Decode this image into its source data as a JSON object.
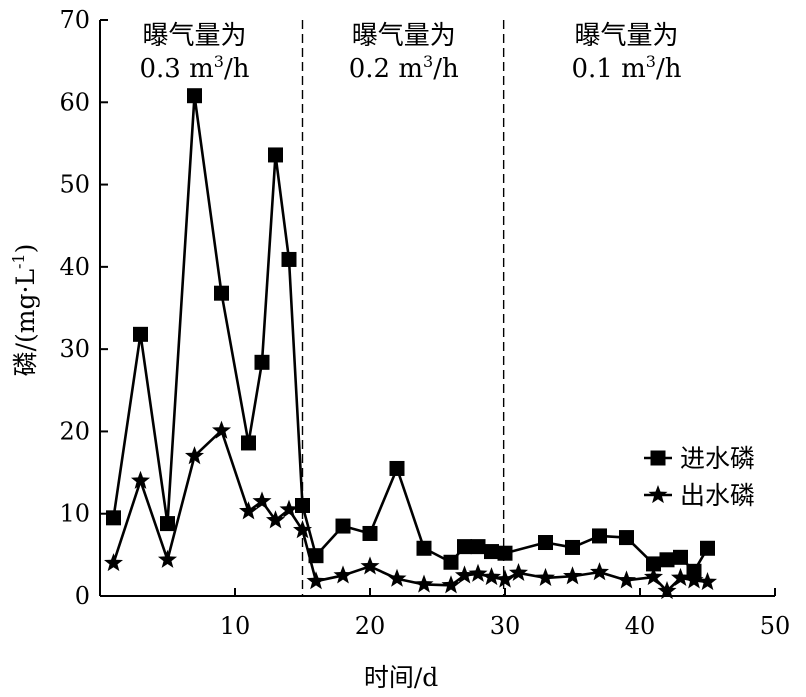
{
  "chart_data": {
    "type": "line",
    "xlabel": "时间/d",
    "ylabel_main": "磷/(mg·L",
    "ylabel_sup": "-1",
    "ylabel_close": ")",
    "xlim": [
      0,
      50
    ],
    "ylim": [
      0,
      70
    ],
    "xticks": [
      10,
      20,
      30,
      40,
      50
    ],
    "yticks": [
      0,
      10,
      20,
      30,
      40,
      50,
      60,
      70
    ],
    "grid": false,
    "legend_position": "right",
    "series": [
      {
        "name": "进水磷",
        "marker": "square",
        "x": [
          1,
          3,
          5,
          7,
          9,
          11,
          12,
          13,
          14,
          15,
          16,
          18,
          20,
          22,
          24,
          26,
          27,
          28,
          29,
          30,
          33,
          35,
          37,
          39,
          41,
          42,
          43,
          44,
          45
        ],
        "y": [
          9.5,
          31.8,
          8.8,
          60.8,
          36.8,
          18.6,
          28.4,
          53.6,
          40.9,
          11.0,
          4.9,
          8.5,
          7.6,
          15.5,
          5.8,
          4.1,
          6.0,
          6.0,
          5.4,
          5.2,
          6.5,
          5.9,
          7.3,
          7.1,
          3.9,
          4.4,
          4.7,
          3.0,
          5.8
        ]
      },
      {
        "name": "出水磷",
        "marker": "star",
        "x": [
          1,
          3,
          5,
          7,
          9,
          11,
          12,
          13,
          14,
          15,
          16,
          18,
          20,
          22,
          24,
          26,
          27,
          28,
          29,
          30,
          31,
          33,
          35,
          37,
          39,
          41,
          42,
          43,
          44,
          45
        ],
        "y": [
          4.0,
          14.0,
          4.4,
          17.0,
          20.1,
          10.3,
          11.5,
          9.2,
          10.5,
          8.0,
          1.8,
          2.5,
          3.6,
          2.1,
          1.4,
          1.3,
          2.5,
          2.7,
          2.3,
          2.0,
          2.8,
          2.2,
          2.4,
          2.9,
          1.9,
          2.3,
          0.6,
          2.2,
          1.9,
          1.7
        ]
      }
    ],
    "separators": [
      {
        "x": 15,
        "style": "dashed"
      },
      {
        "x": 29.9,
        "style": "dashed"
      }
    ],
    "regions": [
      {
        "line1": "曝气量为",
        "line2_pre": "0.3 m",
        "line2_sup": "3",
        "line2_post": "/h",
        "x_center": 7.0
      },
      {
        "line1": "曝气量为",
        "line2_pre": "0.2 m",
        "line2_sup": "3",
        "line2_post": "/h",
        "x_center": 22.5
      },
      {
        "line1": "曝气量为",
        "line2_pre": "0.1 m",
        "line2_sup": "3",
        "line2_post": "/h",
        "x_center": 39.0
      }
    ],
    "colors": {
      "line": "#000000",
      "background": "#ffffff"
    }
  }
}
